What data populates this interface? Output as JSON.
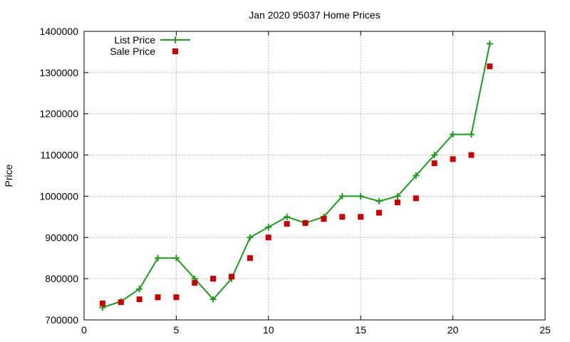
{
  "chart_data": {
    "type": "line",
    "title": "Jan 2020 95037 Home Prices",
    "xlabel": "",
    "ylabel": "Price",
    "xlim": [
      0,
      25
    ],
    "ylim": [
      700000,
      1400000
    ],
    "x_ticks": [
      0,
      5,
      10,
      15,
      20,
      25
    ],
    "y_ticks": [
      700000,
      800000,
      900000,
      1000000,
      1100000,
      1200000,
      1300000,
      1400000
    ],
    "grid": true,
    "legend_position": "top-left",
    "series": [
      {
        "name": "List Price",
        "style": "line-with-plus-markers",
        "color": "#1a9e1a",
        "x": [
          1,
          2,
          3,
          4,
          5,
          6,
          7,
          8,
          9,
          10,
          11,
          12,
          13,
          14,
          15,
          16,
          17,
          18,
          19,
          20,
          21,
          22
        ],
        "y": [
          730000,
          745000,
          775000,
          850000,
          850000,
          800000,
          750000,
          800000,
          900000,
          925000,
          950000,
          935000,
          950000,
          1000000,
          1000000,
          988000,
          1000000,
          1050000,
          1100000,
          1150000,
          1150000,
          1370000
        ]
      },
      {
        "name": "Sale Price",
        "style": "square-markers",
        "color": "#cc0000",
        "x": [
          1,
          2,
          3,
          4,
          5,
          6,
          7,
          8,
          9,
          10,
          11,
          12,
          13,
          14,
          15,
          16,
          17,
          18,
          19,
          20,
          21,
          22
        ],
        "y": [
          740000,
          743000,
          750000,
          755000,
          755000,
          790000,
          800000,
          805000,
          850000,
          900000,
          933000,
          935000,
          945000,
          950000,
          950000,
          960000,
          985000,
          995000,
          1080000,
          1090000,
          1100000,
          1315000
        ]
      }
    ]
  }
}
